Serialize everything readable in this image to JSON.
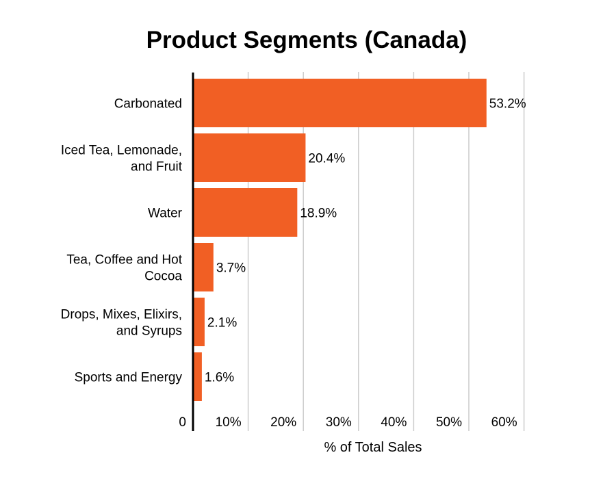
{
  "chart_data": {
    "type": "bar",
    "orientation": "horizontal",
    "title": "Product Segments (Canada)",
    "xlabel": "% of Total Sales",
    "ylabel": "",
    "xlim": [
      0,
      60
    ],
    "x_ticks": [
      0,
      10,
      20,
      30,
      40,
      50,
      60
    ],
    "x_tick_labels": [
      "0",
      "10%",
      "20%",
      "30%",
      "40%",
      "50%",
      "60%"
    ],
    "grid": true,
    "categories": [
      [
        "Carbonated"
      ],
      [
        "Iced Tea, Lemonade,",
        "and Fruit"
      ],
      [
        "Water"
      ],
      [
        "Tea, Coffee and Hot",
        "Cocoa"
      ],
      [
        "Drops, Mixes, Elixirs,",
        "and Syrups"
      ],
      [
        "Sports and Energy"
      ]
    ],
    "values": [
      53.2,
      20.4,
      18.9,
      3.7,
      2.1,
      1.6
    ],
    "data_labels": [
      "53.2%",
      "20.4%",
      "18.9%",
      "3.7%",
      "2.1%",
      "1.6%"
    ],
    "bar_color": "#F15F24",
    "grid_color": "#CCCCCC"
  }
}
